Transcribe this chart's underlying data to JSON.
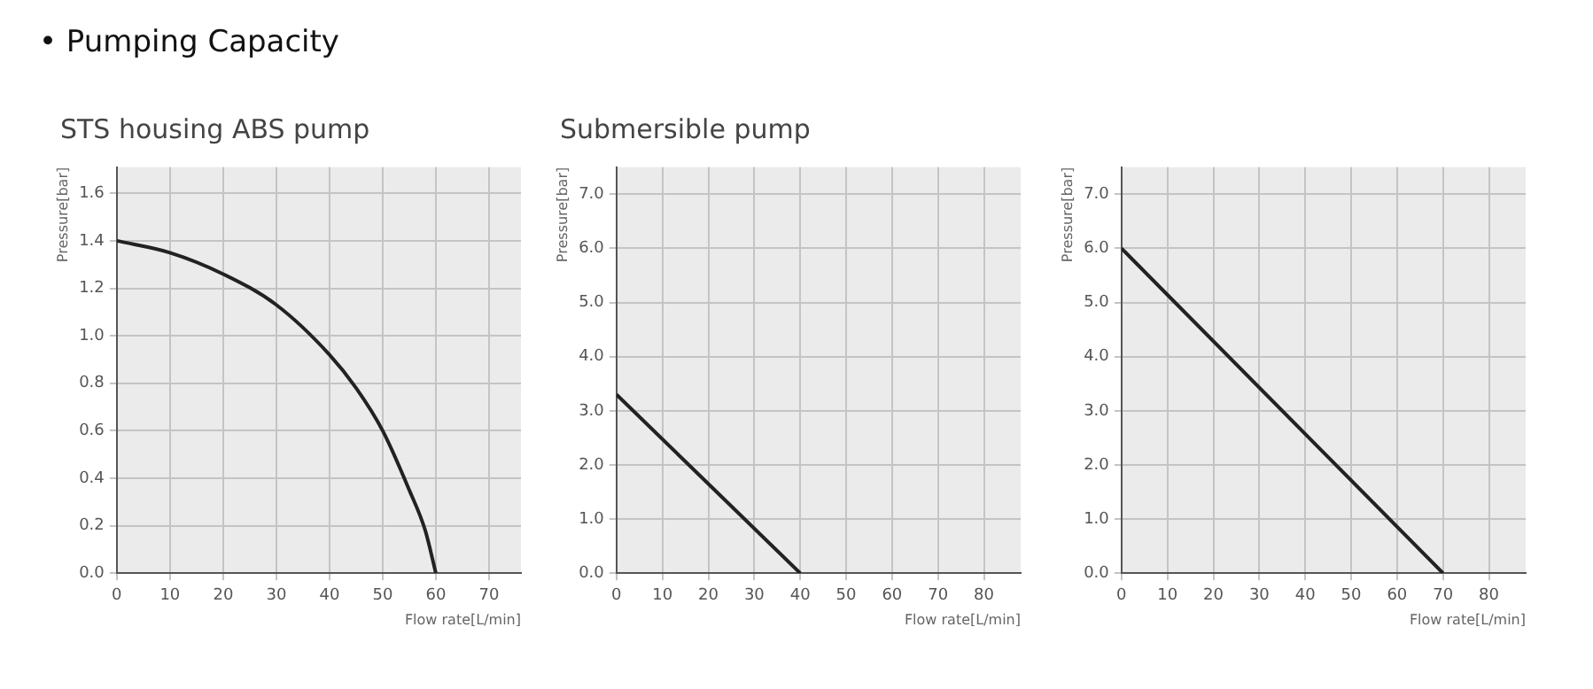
{
  "chart_data": [
    {
      "type": "line",
      "title": "STS housing ABS pump",
      "annotations": [
        "• Pumping Capacity"
      ],
      "xlabel": "Flow rate[L/min]",
      "ylabel": "Pressure[bar]",
      "x": [
        0,
        10,
        20,
        30,
        40,
        45,
        50,
        55,
        58,
        60
      ],
      "values": [
        1.4,
        1.35,
        1.26,
        1.13,
        0.92,
        0.78,
        0.6,
        0.35,
        0.18,
        0
      ],
      "color": "#222222",
      "xlim": [
        0,
        76
      ],
      "ylim": [
        0,
        1.71
      ],
      "xticks": [
        0,
        10,
        20,
        30,
        40,
        50,
        60,
        70
      ],
      "yticks": [
        {
          "value": 0,
          "label": "0.0"
        },
        {
          "value": 0.2,
          "label": "0.2"
        },
        {
          "value": 0.4,
          "label": "0.4"
        },
        {
          "value": 0.6,
          "label": "0.6"
        },
        {
          "value": 0.8,
          "label": "0.8"
        },
        {
          "value": 1,
          "label": "1.0"
        },
        {
          "value": 1.2,
          "label": "1.2"
        },
        {
          "value": 1.4,
          "label": "1.4"
        },
        {
          "value": 1.6,
          "label": "1.6"
        }
      ],
      "grid": true
    },
    {
      "type": "line",
      "title": "Submersible pump",
      "xlabel": "Flow rate[L/min]",
      "ylabel": "Pressure[bar]",
      "x": [
        0,
        40
      ],
      "values": [
        3.3,
        0
      ],
      "color": "#222222",
      "xlim": [
        0,
        88
      ],
      "ylim": [
        0,
        7.5
      ],
      "xticks": [
        0,
        10,
        20,
        30,
        40,
        50,
        60,
        70,
        80
      ],
      "yticks": [
        {
          "value": 0,
          "label": "0.0"
        },
        {
          "value": 1,
          "label": "1.0"
        },
        {
          "value": 2,
          "label": "2.0"
        },
        {
          "value": 3,
          "label": "3.0"
        },
        {
          "value": 4,
          "label": "4.0"
        },
        {
          "value": 5,
          "label": "5.0"
        },
        {
          "value": 6,
          "label": "6.0"
        },
        {
          "value": 7,
          "label": "7.0"
        }
      ],
      "grid": true
    },
    {
      "type": "line",
      "xlabel": "Flow rate[L/min]",
      "ylabel": "Pressure[bar]",
      "x": [
        0,
        70
      ],
      "values": [
        6,
        0
      ],
      "color": "#222222",
      "xlim": [
        0,
        88
      ],
      "ylim": [
        0,
        7.5
      ],
      "xticks": [
        0,
        10,
        20,
        30,
        40,
        50,
        60,
        70,
        80
      ],
      "yticks": [
        {
          "value": 0,
          "label": "0.0"
        },
        {
          "value": 1,
          "label": "1.0"
        },
        {
          "value": 2,
          "label": "2.0"
        },
        {
          "value": 3,
          "label": "3.0"
        },
        {
          "value": 4,
          "label": "4.0"
        },
        {
          "value": 5,
          "label": "5.0"
        },
        {
          "value": 6,
          "label": "6.0"
        },
        {
          "value": 7,
          "label": "7.0"
        }
      ],
      "grid": true
    }
  ]
}
